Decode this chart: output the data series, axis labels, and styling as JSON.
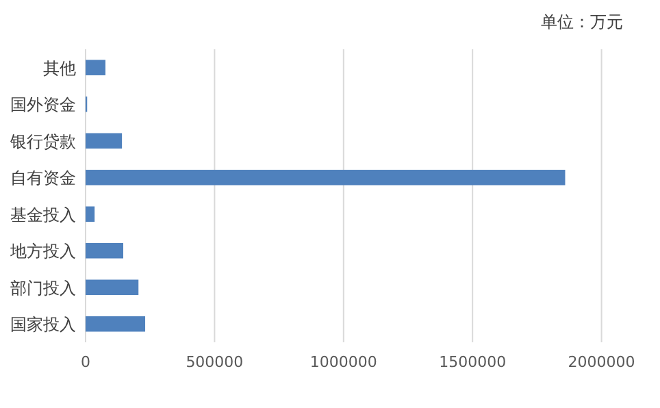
{
  "chart_data": {
    "type": "bar",
    "orientation": "horizontal",
    "categories": [
      "其他",
      "国外资金",
      "银行贷款",
      "自有资金",
      "基金投入",
      "地方投入",
      "部门投入",
      "国家投入"
    ],
    "values": [
      77000,
      6000,
      141000,
      1859000,
      35000,
      146000,
      205000,
      231000
    ],
    "color": "#4f81bd",
    "xlim": [
      0,
      2000000
    ],
    "xticks": [
      0,
      500000,
      1000000,
      1500000,
      2000000
    ],
    "grid": "x",
    "annotations": [
      "单位：万元"
    ]
  }
}
